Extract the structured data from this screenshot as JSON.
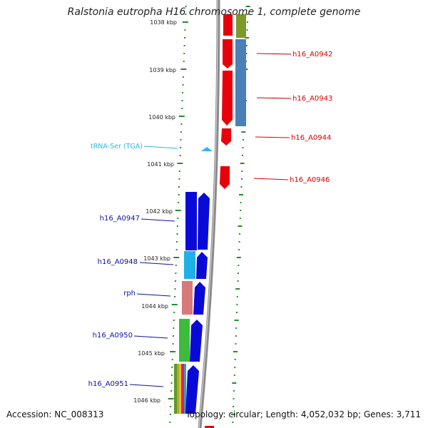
{
  "title": "Ralstonia eutropha H16 chromosome 1, complete genome",
  "footer": {
    "accession": "Accession: NC_008313",
    "summary": "Topology: circular; Length: 4,052,032 bp; Genes: 3,711"
  },
  "ruler": {
    "ticks": [
      "1038 kbp",
      "1039 kbp",
      "1040 kbp",
      "1041 kbp",
      "1042 kbp",
      "1043 kbp",
      "1044 kbp",
      "1045 kbp",
      "1046 kbp"
    ]
  },
  "labels": {
    "right": [
      "h16_A0942",
      "h16_A0943",
      "h16_A0944",
      "h16_A0946"
    ],
    "left": [
      "h16_A0947",
      "h16_A0948",
      "rph",
      "h16_A0950",
      "h16_A0951"
    ],
    "trna": "tRNA-Ser (TGA)"
  },
  "colors": {
    "forward_gene": "#e8000b",
    "reverse_gene": "#0a0ad8",
    "trna": "#2ab8e6",
    "label_right": "#d40000",
    "label_left": "#1010a0",
    "label_trna": "#2ab8e6",
    "dots": "#2a8a2a",
    "backbone": "#8a8a8a"
  }
}
